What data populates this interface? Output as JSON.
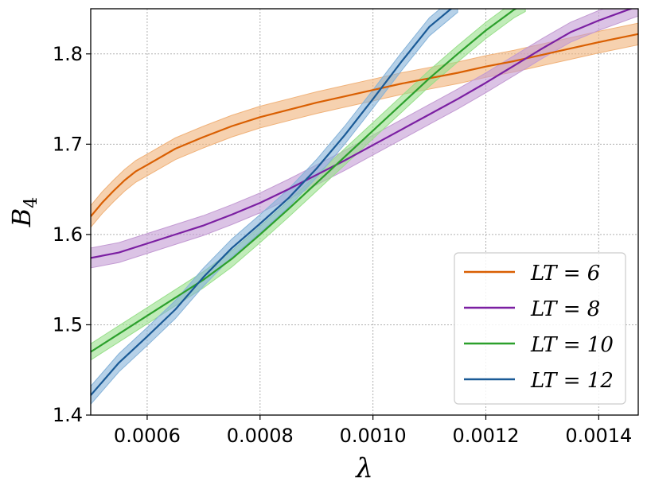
{
  "chart_data": {
    "type": "line",
    "xlabel": "λ",
    "ylabel": "B",
    "ylabel_subscript": "4",
    "xlim": [
      0.0005,
      0.00147
    ],
    "ylim": [
      1.4,
      1.85
    ],
    "xticks": [
      0.0006,
      0.0008,
      0.001,
      0.0012,
      0.0014
    ],
    "xtick_labels": [
      "0.0006",
      "0.0008",
      "0.0010",
      "0.0012",
      "0.0014"
    ],
    "yticks": [
      1.4,
      1.5,
      1.6,
      1.7,
      1.8
    ],
    "ytick_labels": [
      "1.4",
      "1.5",
      "1.6",
      "1.7",
      "1.8"
    ],
    "grid": true,
    "legend_position": "lower-right",
    "series": [
      {
        "name": "LT = 6",
        "color": "#d95f02",
        "band_color": "#f0b27a",
        "x": [
          0.0005,
          0.00052,
          0.00054,
          0.00056,
          0.00058,
          0.0006,
          0.00065,
          0.0007,
          0.00075,
          0.0008,
          0.00085,
          0.0009,
          0.00095,
          0.001,
          0.00105,
          0.0011,
          0.00115,
          0.0012,
          0.00125,
          0.0013,
          0.00135,
          0.0014,
          0.00147
        ],
        "y": [
          1.62,
          1.635,
          1.648,
          1.66,
          1.67,
          1.677,
          1.695,
          1.708,
          1.72,
          1.73,
          1.738,
          1.746,
          1.753,
          1.76,
          1.767,
          1.773,
          1.779,
          1.786,
          1.792,
          1.799,
          1.806,
          1.813,
          1.822
        ],
        "band": 0.012
      },
      {
        "name": "LT = 8",
        "color": "#7b1fa2",
        "band_color": "#c39bd3",
        "x": [
          0.0005,
          0.00055,
          0.0006,
          0.00065,
          0.0007,
          0.00075,
          0.0008,
          0.00085,
          0.0009,
          0.00095,
          0.001,
          0.00105,
          0.0011,
          0.00115,
          0.0012,
          0.00125,
          0.0013,
          0.00135,
          0.0014,
          0.00147
        ],
        "y": [
          1.574,
          1.58,
          1.59,
          1.6,
          1.61,
          1.622,
          1.635,
          1.65,
          1.666,
          1.682,
          1.699,
          1.716,
          1.733,
          1.75,
          1.768,
          1.787,
          1.806,
          1.824,
          1.837,
          1.853
        ],
        "band": 0.011
      },
      {
        "name": "LT = 10",
        "color": "#2ca02c",
        "band_color": "#98df8a",
        "x": [
          0.0005,
          0.00055,
          0.0006,
          0.00065,
          0.0007,
          0.00075,
          0.0008,
          0.00085,
          0.0009,
          0.00095,
          0.001,
          0.00105,
          0.0011,
          0.00115,
          0.0012,
          0.00125,
          0.00127
        ],
        "y": [
          1.47,
          1.49,
          1.51,
          1.53,
          1.55,
          1.573,
          1.6,
          1.628,
          1.657,
          1.686,
          1.715,
          1.744,
          1.773,
          1.8,
          1.826,
          1.849,
          1.856
        ],
        "band": 0.009
      },
      {
        "name": "LT = 12",
        "color": "#1a5a96",
        "band_color": "#86b3d9",
        "x": [
          0.0005,
          0.00055,
          0.0006,
          0.00065,
          0.0007,
          0.00075,
          0.0008,
          0.00085,
          0.0009,
          0.00095,
          0.001,
          0.00105,
          0.0011,
          0.00115
        ],
        "y": [
          1.422,
          1.458,
          1.487,
          1.517,
          1.553,
          1.585,
          1.612,
          1.64,
          1.673,
          1.71,
          1.75,
          1.791,
          1.83,
          1.856
        ],
        "band": 0.01
      }
    ]
  }
}
